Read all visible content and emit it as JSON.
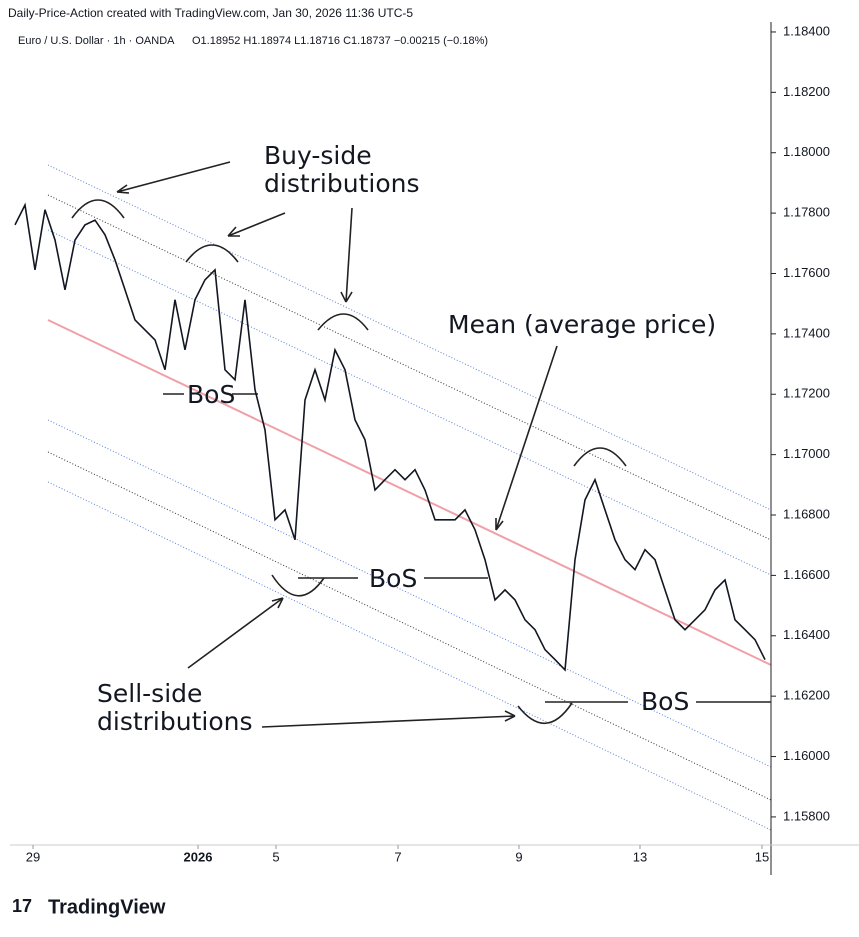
{
  "chart_data": {
    "type": "line",
    "header": "Daily-Price-Action created with TradingView.com, Jan 30, 2026 11:36 UTC-5",
    "title": "Euro / U.S. Dollar · 1h · OANDA",
    "ohlc": "O1.18952 H1.18974 L1.18716 C1.18737 −0.00215 (−0.18%)",
    "annotations": {
      "buy": "Buy-side\ndistributions",
      "mean": "Mean (average price)",
      "sell": "Sell-side\ndistributions",
      "bos": "BoS"
    },
    "brand": "TradingView",
    "series": [
      {
        "name": "EURUSD",
        "color": "#131722",
        "values": [
          1.17761,
          1.17827,
          1.17612,
          1.17811,
          1.17711,
          1.17546,
          1.17711,
          1.17761,
          1.17777,
          1.17728,
          1.17645,
          1.17546,
          1.17446,
          1.17413,
          1.1738,
          1.17281,
          1.17513,
          1.17347,
          1.17513,
          1.17579,
          1.17612,
          1.17281,
          1.17248,
          1.17513,
          1.17215,
          1.17082,
          1.16784,
          1.16817,
          1.16718,
          1.17181,
          1.17281,
          1.17181,
          1.17347,
          1.17281,
          1.17115,
          1.17049,
          1.16883,
          1.16917,
          1.1695,
          1.16917,
          1.1695,
          1.16883,
          1.16784,
          1.16784,
          1.16784,
          1.16817,
          1.16751,
          1.16652,
          1.16519,
          1.16552,
          1.16519,
          1.16453,
          1.1642,
          1.16354,
          1.16321,
          1.16287,
          1.16652,
          1.1685,
          1.16917,
          1.16817,
          1.16718,
          1.16652,
          1.16619,
          1.16685,
          1.16652,
          1.16552,
          1.16453,
          1.1642,
          1.16453,
          1.16486,
          1.16552,
          1.16585,
          1.16453,
          1.1642,
          1.16387,
          1.16321
        ]
      }
    ],
    "xlim": [
      -0.5,
      75.6
    ],
    "xticks": [
      {
        "value": 1.8,
        "label": "29"
      },
      {
        "value": 18.3,
        "label": "2026"
      },
      {
        "value": 26.1,
        "label": "5"
      },
      {
        "value": 38.3,
        "label": "7"
      },
      {
        "value": 50.4,
        "label": "9"
      },
      {
        "value": 62.5,
        "label": "13"
      },
      {
        "value": 74.7,
        "label": "15"
      }
    ],
    "ylim": [
      1.15707,
      1.18433
    ],
    "yticks": [
      {
        "value": 1.184,
        "label": "1.18400"
      },
      {
        "value": 1.182,
        "label": "1.18200"
      },
      {
        "value": 1.18,
        "label": "1.18000"
      },
      {
        "value": 1.178,
        "label": "1.17800"
      },
      {
        "value": 1.176,
        "label": "1.17600"
      },
      {
        "value": 1.174,
        "label": "1.17400"
      },
      {
        "value": 1.172,
        "label": "1.17200"
      },
      {
        "value": 1.17,
        "label": "1.17000"
      },
      {
        "value": 1.168,
        "label": "1.16800"
      },
      {
        "value": 1.166,
        "label": "1.16600"
      },
      {
        "value": 1.164,
        "label": "1.16400"
      },
      {
        "value": 1.162,
        "label": "1.16200"
      },
      {
        "value": 1.16,
        "label": "1.16000"
      },
      {
        "value": 1.158,
        "label": "1.15800"
      }
    ]
  }
}
